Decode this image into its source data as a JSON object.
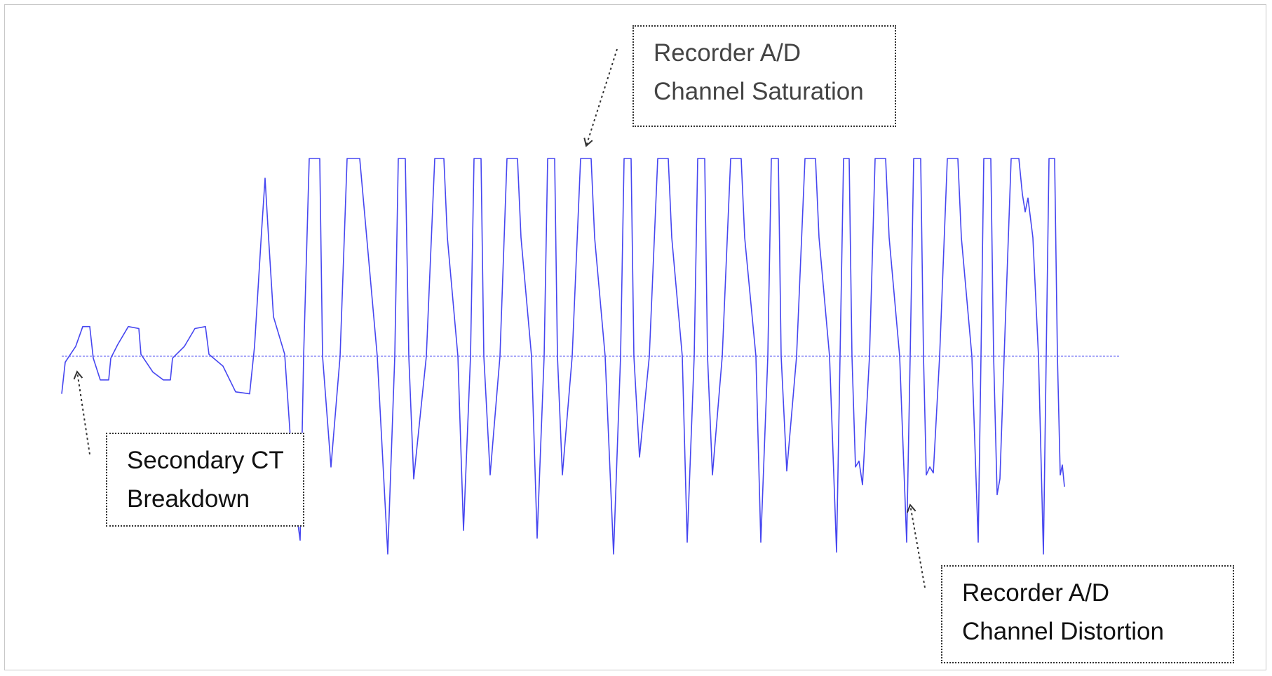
{
  "colors": {
    "waveform": "#4646f0",
    "baseline": "#8c8cf5",
    "annotation_arrow": "#333333",
    "box_border": "#333333"
  },
  "waveform": {
    "baseline_value": 0,
    "clip_level_high": 1,
    "samples": [
      [
        0,
        -0.19
      ],
      [
        5,
        -0.03
      ],
      [
        20,
        0.05
      ],
      [
        30,
        0.15
      ],
      [
        40,
        0.15
      ],
      [
        45,
        -0.01
      ],
      [
        55,
        -0.12
      ],
      [
        67,
        -0.12
      ],
      [
        70,
        -0.01
      ],
      [
        80,
        0.06
      ],
      [
        95,
        0.15
      ],
      [
        110,
        0.14
      ],
      [
        113,
        0.01
      ],
      [
        130,
        -0.08
      ],
      [
        145,
        -0.12
      ],
      [
        155,
        -0.12
      ],
      [
        158,
        -0.01
      ],
      [
        175,
        0.05
      ],
      [
        190,
        0.14
      ],
      [
        205,
        0.15
      ],
      [
        210,
        0.01
      ],
      [
        230,
        -0.05
      ],
      [
        248,
        -0.18
      ],
      [
        268,
        -0.19
      ],
      [
        275,
        0.05
      ],
      [
        285,
        0.63
      ],
      [
        290,
        0.9
      ],
      [
        295,
        0.6
      ],
      [
        302,
        0.2
      ],
      [
        318,
        0.01
      ],
      [
        332,
        -0.72
      ],
      [
        340,
        -0.93
      ],
      [
        345,
        0.0
      ],
      [
        353,
        1.0
      ],
      [
        368,
        1.0
      ],
      [
        372,
        0.0
      ],
      [
        384,
        -0.56
      ],
      [
        397,
        0.0
      ],
      [
        407,
        1.0
      ],
      [
        425,
        1.0
      ],
      [
        435,
        0.6
      ],
      [
        450,
        0.0
      ],
      [
        465,
        -1.0
      ],
      [
        475,
        0.0
      ],
      [
        480,
        1.0
      ],
      [
        490,
        1.0
      ],
      [
        495,
        0.0
      ],
      [
        502,
        -0.62
      ],
      [
        520,
        0.0
      ],
      [
        532,
        1.0
      ],
      [
        545,
        1.0
      ],
      [
        550,
        0.6
      ],
      [
        565,
        0.0
      ],
      [
        573,
        -0.88
      ],
      [
        583,
        0.0
      ],
      [
        588,
        1.0
      ],
      [
        598,
        1.0
      ],
      [
        602,
        0.0
      ],
      [
        611,
        -0.6
      ],
      [
        625,
        0.0
      ],
      [
        635,
        1.0
      ],
      [
        650,
        1.0
      ],
      [
        655,
        0.6
      ],
      [
        670,
        0.0
      ],
      [
        678,
        -0.92
      ],
      [
        688,
        0.0
      ],
      [
        693,
        1.0
      ],
      [
        703,
        1.0
      ],
      [
        707,
        0.0
      ],
      [
        714,
        -0.6
      ],
      [
        728,
        0.0
      ],
      [
        740,
        1.0
      ],
      [
        755,
        1.0
      ],
      [
        760,
        0.6
      ],
      [
        775,
        0.0
      ],
      [
        787,
        -1.0
      ],
      [
        797,
        0.0
      ],
      [
        802,
        1.0
      ],
      [
        812,
        1.0
      ],
      [
        816,
        0.0
      ],
      [
        824,
        -0.51
      ],
      [
        838,
        0.0
      ],
      [
        850,
        1.0
      ],
      [
        865,
        1.0
      ],
      [
        870,
        0.6
      ],
      [
        885,
        0.0
      ],
      [
        892,
        -0.94
      ],
      [
        902,
        0.0
      ],
      [
        907,
        1.0
      ],
      [
        917,
        1.0
      ],
      [
        921,
        0.0
      ],
      [
        928,
        -0.6
      ],
      [
        942,
        0.0
      ],
      [
        954,
        1.0
      ],
      [
        969,
        1.0
      ],
      [
        974,
        0.6
      ],
      [
        990,
        0.0
      ],
      [
        997,
        -0.94
      ],
      [
        1007,
        0.0
      ],
      [
        1012,
        1.0
      ],
      [
        1022,
        1.0
      ],
      [
        1026,
        0.0
      ],
      [
        1034,
        -0.58
      ],
      [
        1048,
        0.0
      ],
      [
        1060,
        1.0
      ],
      [
        1075,
        1.0
      ],
      [
        1080,
        0.6
      ],
      [
        1095,
        0.0
      ],
      [
        1105,
        -0.99
      ],
      [
        1110,
        0.0
      ],
      [
        1115,
        1.0
      ],
      [
        1123,
        1.0
      ],
      [
        1127,
        0.0
      ],
      [
        1132,
        -0.56
      ],
      [
        1137,
        -0.53
      ],
      [
        1142,
        -0.65
      ],
      [
        1152,
        0.0
      ],
      [
        1160,
        1.0
      ],
      [
        1175,
        1.0
      ],
      [
        1180,
        0.6
      ],
      [
        1195,
        0.0
      ],
      [
        1205,
        -0.94
      ],
      [
        1210,
        0.0
      ],
      [
        1215,
        1.0
      ],
      [
        1225,
        1.0
      ],
      [
        1229,
        0.0
      ],
      [
        1233,
        -0.6
      ],
      [
        1238,
        -0.56
      ],
      [
        1243,
        -0.59
      ],
      [
        1252,
        0.0
      ],
      [
        1263,
        1.0
      ],
      [
        1278,
        1.0
      ],
      [
        1283,
        0.6
      ],
      [
        1298,
        0.0
      ],
      [
        1307,
        -0.94
      ],
      [
        1311,
        0.0
      ],
      [
        1315,
        1.0
      ],
      [
        1325,
        1.0
      ],
      [
        1329,
        0.0
      ],
      [
        1334,
        -0.7
      ],
      [
        1338,
        -0.62
      ],
      [
        1344,
        0.0
      ],
      [
        1354,
        1.0
      ],
      [
        1365,
        1.0
      ],
      [
        1370,
        0.82
      ],
      [
        1374,
        0.73
      ],
      [
        1378,
        0.8
      ],
      [
        1385,
        0.6
      ],
      [
        1393,
        0.0
      ],
      [
        1400,
        -1.0
      ],
      [
        1404,
        0.0
      ],
      [
        1408,
        1.0
      ],
      [
        1416,
        1.0
      ],
      [
        1420,
        0.0
      ],
      [
        1424,
        -0.6
      ],
      [
        1427,
        -0.55
      ],
      [
        1430,
        -0.66
      ]
    ]
  },
  "callouts": {
    "saturation": {
      "line1": "Recorder A/D",
      "line2": "Channel Saturation"
    },
    "breakdown": {
      "line1": "Secondary CT",
      "line2": "Breakdown"
    },
    "distortion": {
      "line1": "Recorder A/D",
      "line2": "Channel Distortion"
    }
  }
}
